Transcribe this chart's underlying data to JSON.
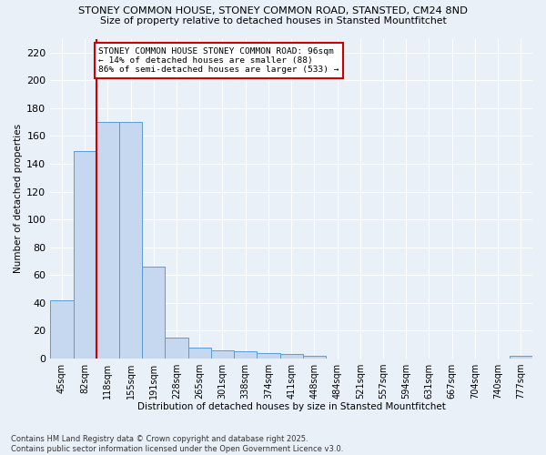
{
  "title_line1": "STONEY COMMON HOUSE, STONEY COMMON ROAD, STANSTED, CM24 8ND",
  "title_line2": "Size of property relative to detached houses in Stansted Mountfitchet",
  "xlabel": "Distribution of detached houses by size in Stansted Mountfitchet",
  "ylabel": "Number of detached properties",
  "annotation_line1": "STONEY COMMON HOUSE STONEY COMMON ROAD: 96sqm",
  "annotation_line2": "← 14% of detached houses are smaller (88)",
  "annotation_line3": "86% of semi-detached houses are larger (533) →",
  "footer_line1": "Contains HM Land Registry data © Crown copyright and database right 2025.",
  "footer_line2": "Contains public sector information licensed under the Open Government Licence v3.0.",
  "categories": [
    "45sqm",
    "82sqm",
    "118sqm",
    "155sqm",
    "191sqm",
    "228sqm",
    "265sqm",
    "301sqm",
    "338sqm",
    "374sqm",
    "411sqm",
    "448sqm",
    "484sqm",
    "521sqm",
    "557sqm",
    "594sqm",
    "631sqm",
    "667sqm",
    "704sqm",
    "740sqm",
    "777sqm"
  ],
  "values": [
    42,
    149,
    170,
    170,
    66,
    15,
    8,
    6,
    5,
    4,
    3,
    2,
    0,
    0,
    0,
    0,
    0,
    0,
    0,
    0,
    2
  ],
  "bar_color": "#c5d8f0",
  "bar_edge_color": "#5b9bd5",
  "vline_color": "#cc0000",
  "annotation_box_edge_color": "#cc0000",
  "background_color": "#eaf0f8",
  "ylim": [
    0,
    230
  ],
  "yticks": [
    0,
    20,
    40,
    60,
    80,
    100,
    120,
    140,
    160,
    180,
    200,
    220
  ],
  "vline_x": 1.5
}
